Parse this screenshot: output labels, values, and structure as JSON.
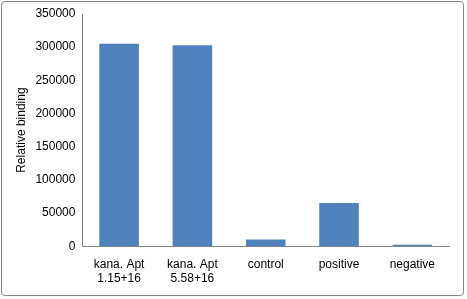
{
  "chart_data": {
    "type": "bar",
    "y_label": "Relative binding",
    "categories": [
      "kana. Apt\n1.15+16",
      "kana. Apt\n5.58+16",
      "control",
      "positive",
      "negative"
    ],
    "values": [
      305000,
      303000,
      10000,
      65000,
      2000
    ],
    "color": "#4f81bd",
    "ylim": [
      0,
      350000
    ],
    "yticks": [
      0,
      50000,
      100000,
      150000,
      200000,
      250000,
      300000,
      350000
    ],
    "grid": false
  }
}
